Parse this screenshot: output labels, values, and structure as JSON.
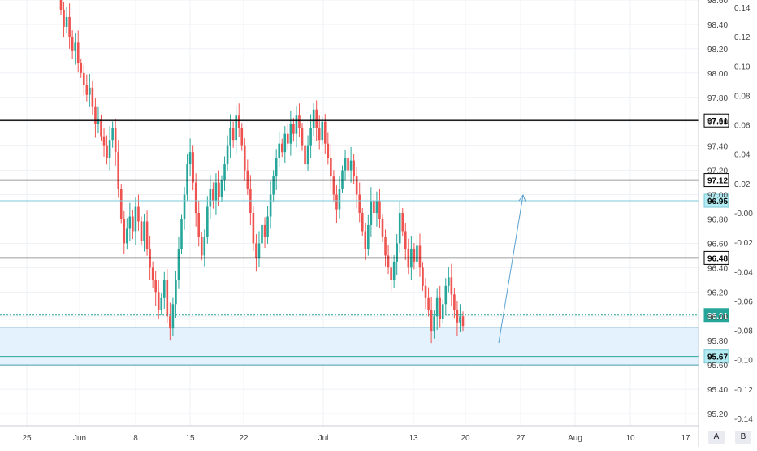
{
  "chart_data": {
    "type": "candlestick",
    "title": "",
    "x_axis": {
      "labels": [
        "25",
        "Jun",
        "8",
        "15",
        "22",
        "Jul",
        "13",
        "20",
        "27",
        "Aug",
        "10",
        "17"
      ]
    },
    "y_axis_left": {
      "range": [
        95.1,
        98.6
      ],
      "ticks": [
        "98.60",
        "98.40",
        "98.20",
        "98.00",
        "97.80",
        "97.60",
        "97.40",
        "97.20",
        "97.00",
        "96.80",
        "96.60",
        "96.40",
        "96.20",
        "96.00",
        "95.80",
        "95.60",
        "95.40",
        "95.20"
      ]
    },
    "y_axis_right": {
      "range": [
        -0.145,
        0.145
      ],
      "ticks": [
        "0.14",
        "0.12",
        "0.10",
        "0.08",
        "0.06",
        "0.04",
        "0.02",
        "-0.00",
        "-0.02",
        "-0.04",
        "-0.06",
        "-0.08",
        "-0.10",
        "-0.12",
        "-0.14"
      ]
    },
    "horizontal_levels": [
      {
        "value": 97.61,
        "label": "97.61",
        "color": "#000000"
      },
      {
        "value": 97.12,
        "label": "97.12",
        "color": "#000000"
      },
      {
        "value": 96.95,
        "label": "96.95",
        "color": "#7ec8d8"
      },
      {
        "value": 96.48,
        "label": "96.48",
        "color": "#000000"
      },
      {
        "value": 96.01,
        "label": "96.01",
        "color": "#26a69a"
      },
      {
        "value": 95.67,
        "label": "95.67",
        "color": "#26a69a"
      }
    ],
    "support_zone": {
      "from": 95.6,
      "to": 95.91,
      "color": "#e3f2fd"
    },
    "projection_arrow": {
      "from": [
        95.82,
        "~Jul 23"
      ],
      "to": [
        96.98,
        "~Jul 26"
      ],
      "color": "#5aa0d0"
    },
    "price_path": [
      [
        98.62,
        98.52
      ],
      [
        98.52,
        98.38
      ],
      [
        98.38,
        98.46
      ],
      [
        98.46,
        98.3
      ],
      [
        98.3,
        98.18
      ],
      [
        98.18,
        98.25
      ],
      [
        98.25,
        98.08
      ],
      [
        98.08,
        98.0
      ],
      [
        98.0,
        97.9
      ],
      [
        97.9,
        97.82
      ],
      [
        97.82,
        97.88
      ],
      [
        97.88,
        97.72
      ],
      [
        97.72,
        97.58
      ],
      [
        97.58,
        97.62
      ],
      [
        97.62,
        97.48
      ],
      [
        97.48,
        97.4
      ],
      [
        97.4,
        97.3
      ],
      [
        97.3,
        97.45
      ],
      [
        97.45,
        97.55
      ],
      [
        97.55,
        97.35
      ],
      [
        97.35,
        97.05
      ],
      [
        97.05,
        96.8
      ],
      [
        96.8,
        96.6
      ],
      [
        96.6,
        96.72
      ],
      [
        96.72,
        96.82
      ],
      [
        96.82,
        96.7
      ],
      [
        96.7,
        96.9
      ],
      [
        96.9,
        96.78
      ],
      [
        96.78,
        96.62
      ],
      [
        96.62,
        96.78
      ],
      [
        96.78,
        96.55
      ],
      [
        96.55,
        96.4
      ],
      [
        96.4,
        96.3
      ],
      [
        96.3,
        96.2
      ],
      [
        96.2,
        96.05
      ],
      [
        96.05,
        96.15
      ],
      [
        96.15,
        96.3
      ],
      [
        96.3,
        96.0
      ],
      [
        96.0,
        95.9
      ],
      [
        95.9,
        96.1
      ],
      [
        96.1,
        96.3
      ],
      [
        96.3,
        96.55
      ],
      [
        96.55,
        96.8
      ],
      [
        96.8,
        97.0
      ],
      [
        97.0,
        97.25
      ],
      [
        97.25,
        97.35
      ],
      [
        97.35,
        97.1
      ],
      [
        97.1,
        96.85
      ],
      [
        96.85,
        96.65
      ],
      [
        96.65,
        96.5
      ],
      [
        96.5,
        96.65
      ],
      [
        96.65,
        96.9
      ],
      [
        96.9,
        97.05
      ],
      [
        97.05,
        96.95
      ],
      [
        96.95,
        97.1
      ],
      [
        97.1,
        96.98
      ],
      [
        96.98,
        97.12
      ],
      [
        97.12,
        97.25
      ],
      [
        97.25,
        97.4
      ],
      [
        97.4,
        97.55
      ],
      [
        97.55,
        97.45
      ],
      [
        97.45,
        97.65
      ],
      [
        97.65,
        97.55
      ],
      [
        97.55,
        97.4
      ],
      [
        97.4,
        97.2
      ],
      [
        97.2,
        97.05
      ],
      [
        97.05,
        96.85
      ],
      [
        96.85,
        96.6
      ],
      [
        96.6,
        96.48
      ],
      [
        96.48,
        96.6
      ],
      [
        96.6,
        96.75
      ],
      [
        96.75,
        96.65
      ],
      [
        96.65,
        96.82
      ],
      [
        96.82,
        97.0
      ],
      [
        97.0,
        97.15
      ],
      [
        97.15,
        97.3
      ],
      [
        97.3,
        97.42
      ],
      [
        97.42,
        97.35
      ],
      [
        97.35,
        97.5
      ],
      [
        97.5,
        97.42
      ],
      [
        97.42,
        97.58
      ],
      [
        97.58,
        97.5
      ],
      [
        97.5,
        97.65
      ],
      [
        97.65,
        97.55
      ],
      [
        97.55,
        97.4
      ],
      [
        97.4,
        97.25
      ],
      [
        97.25,
        97.4
      ],
      [
        97.4,
        97.55
      ],
      [
        97.55,
        97.7
      ],
      [
        97.7,
        97.55
      ],
      [
        97.55,
        97.45
      ],
      [
        97.45,
        97.6
      ],
      [
        97.6,
        97.42
      ],
      [
        97.42,
        97.3
      ],
      [
        97.3,
        97.15
      ],
      [
        97.15,
        97.0
      ],
      [
        97.0,
        96.88
      ],
      [
        96.88,
        97.05
      ],
      [
        97.05,
        97.2
      ],
      [
        97.2,
        97.3
      ],
      [
        97.3,
        97.2
      ],
      [
        97.2,
        97.28
      ],
      [
        97.28,
        97.15
      ],
      [
        97.15,
        97.0
      ],
      [
        97.0,
        96.85
      ],
      [
        96.85,
        96.7
      ],
      [
        96.7,
        96.55
      ],
      [
        96.55,
        96.75
      ],
      [
        96.75,
        96.95
      ],
      [
        96.95,
        96.85
      ],
      [
        96.85,
        96.95
      ],
      [
        96.95,
        96.8
      ],
      [
        96.8,
        96.65
      ],
      [
        96.65,
        96.5
      ],
      [
        96.5,
        96.4
      ],
      [
        96.4,
        96.3
      ],
      [
        96.3,
        96.45
      ],
      [
        96.45,
        96.6
      ],
      [
        96.6,
        96.85
      ],
      [
        96.85,
        96.7
      ],
      [
        96.7,
        96.55
      ],
      [
        96.55,
        96.4
      ],
      [
        96.4,
        96.55
      ],
      [
        96.55,
        96.45
      ],
      [
        96.45,
        96.58
      ],
      [
        96.58,
        96.4
      ],
      [
        96.4,
        96.25
      ],
      [
        96.25,
        96.15
      ],
      [
        96.15,
        96.05
      ],
      [
        96.05,
        95.88
      ],
      [
        95.88,
        96.0
      ],
      [
        96.0,
        96.15
      ],
      [
        96.15,
        95.98
      ],
      [
        95.98,
        96.1
      ],
      [
        96.1,
        96.25
      ],
      [
        96.25,
        96.32
      ],
      [
        96.32,
        96.18
      ],
      [
        96.18,
        96.05
      ],
      [
        96.05,
        95.95
      ],
      [
        95.95,
        96.0
      ],
      [
        96.0,
        95.92
      ]
    ]
  },
  "scale_buttons": {
    "auto": "A",
    "b": "B"
  },
  "colors": {
    "up": "#26a69a",
    "down": "#ef5350",
    "grid": "#eef1f5",
    "axis_text": "#444444",
    "level_label_bg": "#ffffff",
    "highlight_label_bg": "#b2ebf2",
    "zone_label_bg": "#26a69a"
  }
}
